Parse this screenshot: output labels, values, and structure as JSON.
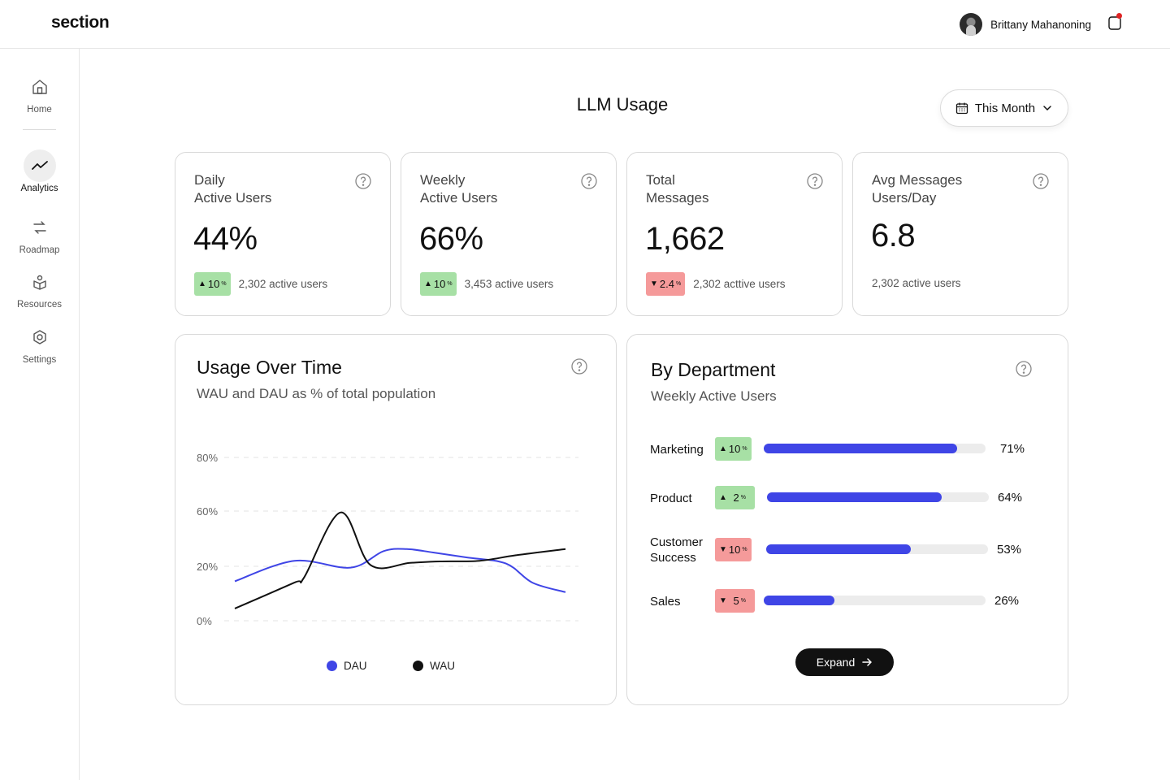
{
  "brand": "section",
  "user": {
    "name": "Brittany Mahanoning",
    "has_notification": true
  },
  "nav": [
    {
      "label": "Home",
      "icon": "home-icon"
    },
    {
      "label": "Analytics",
      "icon": "trend-icon",
      "active": true
    },
    {
      "label": "Roadmap",
      "icon": "roadmap-icon"
    },
    {
      "label": "Resources",
      "icon": "resources-icon"
    },
    {
      "label": "Settings",
      "icon": "settings-icon"
    }
  ],
  "page": {
    "title": "LLM Usage",
    "period": "This Month"
  },
  "stats": [
    {
      "label_line1": "Daily",
      "label_line2": "Active Users",
      "value": "44%",
      "delta": "10",
      "delta_unit": "%",
      "direction": "up",
      "foot": "2,302 active users"
    },
    {
      "label_line1": "Weekly",
      "label_line2": "Active Users",
      "value": "66%",
      "delta": "10",
      "delta_unit": "%",
      "direction": "up",
      "foot": "3,453 active users"
    },
    {
      "label_line1": "Total",
      "label_line2": "Messages",
      "value": "1,662",
      "delta": "2.4",
      "delta_unit": "%",
      "direction": "down",
      "foot": "2,302 acttive users"
    },
    {
      "label_line1": "Avg Messages",
      "label_line2": "Users/Day",
      "value": "6.8",
      "foot": "2,302 active users"
    }
  ],
  "usage": {
    "title": "Usage Over Time",
    "subtitle": "WAU and DAU as % of total population"
  },
  "chart_data": {
    "type": "line",
    "title": "Usage Over Time",
    "subtitle": "WAU and DAU as % of total population",
    "y_ticks": [
      {
        "label": "80%",
        "value": 80
      },
      {
        "label": "60%",
        "value": 60
      },
      {
        "label": "20%",
        "value": 20
      },
      {
        "label": "0%",
        "value": 0
      }
    ],
    "ylim": [
      0,
      80
    ],
    "series": [
      {
        "name": "DAU",
        "color": "#3f45e6",
        "x": [
          0,
          0.18,
          0.35,
          0.45,
          0.52,
          0.6,
          0.7,
          0.82,
          0.9,
          1.0
        ],
        "values": [
          14.5,
          24,
          19.5,
          31,
          32.5,
          30,
          26.5,
          22,
          14,
          10.5
        ]
      },
      {
        "name": "WAU",
        "color": "#111111",
        "x": [
          0,
          0.18,
          0.21,
          0.32,
          0.41,
          0.53,
          0.62,
          0.74,
          0.85,
          1.0
        ],
        "values": [
          4.5,
          14,
          16,
          59,
          21,
          22.5,
          23.5,
          24,
          28,
          32.5
        ]
      }
    ],
    "legend": [
      "DAU",
      "WAU"
    ]
  },
  "department": {
    "title": "By Department",
    "subtitle": "Weekly Active Users",
    "rows": [
      {
        "name": "Marketing",
        "delta": "10",
        "delta_unit": "%",
        "direction": "up",
        "value": 71,
        "pct_label": "71%"
      },
      {
        "name": "Product",
        "delta": "2",
        "delta_unit": "%",
        "direction": "up",
        "value": 64,
        "pct_label": "64%"
      },
      {
        "name": "Customer Success",
        "delta": "10",
        "delta_unit": "%",
        "direction": "down",
        "value": 53,
        "pct_label": "53%"
      },
      {
        "name": "Sales",
        "delta": "5",
        "delta_unit": "%",
        "direction": "down",
        "value": 26,
        "pct_label": "26%"
      }
    ],
    "expand_label": "Expand"
  },
  "colors": {
    "accent": "#3f45e6",
    "up": "#a7e0a5",
    "down": "#f59a9a"
  }
}
